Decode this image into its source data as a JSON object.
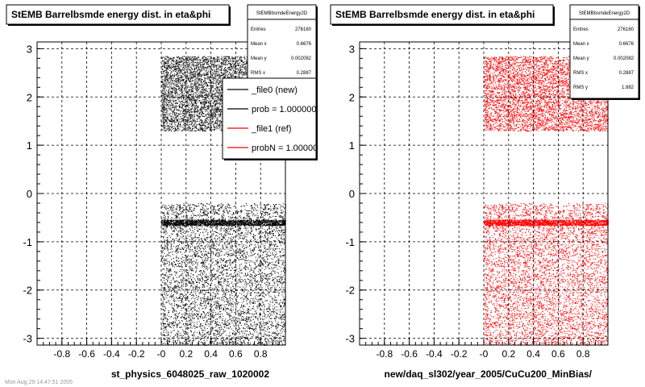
{
  "chart_data": [
    {
      "type": "scatter",
      "title": "StEMB Barrelbsmde energy dist. in eta&phi",
      "xlabel": "st_physics_6048025_raw_1020002",
      "ylabel": "",
      "xlim": [
        -1,
        1
      ],
      "ylim": [
        -3.14,
        3.14
      ],
      "x_ticks": [
        "-0.8",
        "-0.6",
        "-0.4",
        "-0.2",
        "-0",
        "0.2",
        "0.4",
        "0.6",
        "0.8"
      ],
      "y_ticks": [
        "3",
        "2",
        "1",
        "0",
        "-1",
        "-2",
        "-3"
      ],
      "grid": true,
      "marker_color": "#000000",
      "stats": {
        "name": "StEMBbsmdeEnergy2D",
        "rows": [
          {
            "label": "Entries",
            "value": "276160"
          },
          {
            "label": "Mean x",
            "value": "0.6676"
          },
          {
            "label": "Mean y",
            "value": "0.002082"
          },
          {
            "label": "RMS x",
            "value": "0.2887"
          }
        ]
      },
      "legend": {
        "placement": "top-right",
        "entries": [
          {
            "label": "_file0 (new)",
            "color": "#000000"
          },
          {
            "label": "prob = 1.000000",
            "color": "#000000"
          },
          {
            "label": "_file1 (ref)",
            "color": "#ff0000"
          },
          {
            "label": "probN = 1.000000",
            "color": "#ff0000"
          }
        ]
      },
      "density_regions": [
        {
          "x": [
            0.0,
            1.0
          ],
          "y": [
            1.3,
            2.85
          ]
        },
        {
          "x": [
            0.0,
            1.0
          ],
          "y": [
            -3.14,
            -0.2
          ]
        }
      ],
      "band_y": -0.6
    },
    {
      "type": "scatter",
      "title": "StEMB Barrelbsmde energy dist. in eta&phi",
      "xlabel": "new/daq_sl302/year_2005/CuCu200_MinBias/",
      "ylabel": "",
      "xlim": [
        -1,
        1
      ],
      "ylim": [
        -3.14,
        3.14
      ],
      "x_ticks": [
        "-0.8",
        "-0.6",
        "-0.4",
        "-0.2",
        "-0",
        "0.2",
        "0.4",
        "0.6",
        "0.8"
      ],
      "y_ticks": [
        "3",
        "2",
        "1",
        "0",
        "-1",
        "-2",
        "-3"
      ],
      "grid": true,
      "marker_color": "#ff0000",
      "stats": {
        "name": "StEMBbsmdeEnergy2D",
        "rows": [
          {
            "label": "Entries",
            "value": "276160"
          },
          {
            "label": "Mean x",
            "value": "0.6676"
          },
          {
            "label": "Mean y",
            "value": "0.002082"
          },
          {
            "label": "RMS x",
            "value": "0.2887"
          },
          {
            "label": "RMS y",
            "value": "1.882"
          }
        ]
      },
      "density_regions": [
        {
          "x": [
            0.0,
            1.0
          ],
          "y": [
            1.3,
            2.85
          ]
        },
        {
          "x": [
            0.0,
            1.0
          ],
          "y": [
            -3.14,
            -0.2
          ]
        }
      ],
      "band_y": -0.6
    }
  ],
  "footer_text": "Mon Aug 29 14:47:51 2005"
}
